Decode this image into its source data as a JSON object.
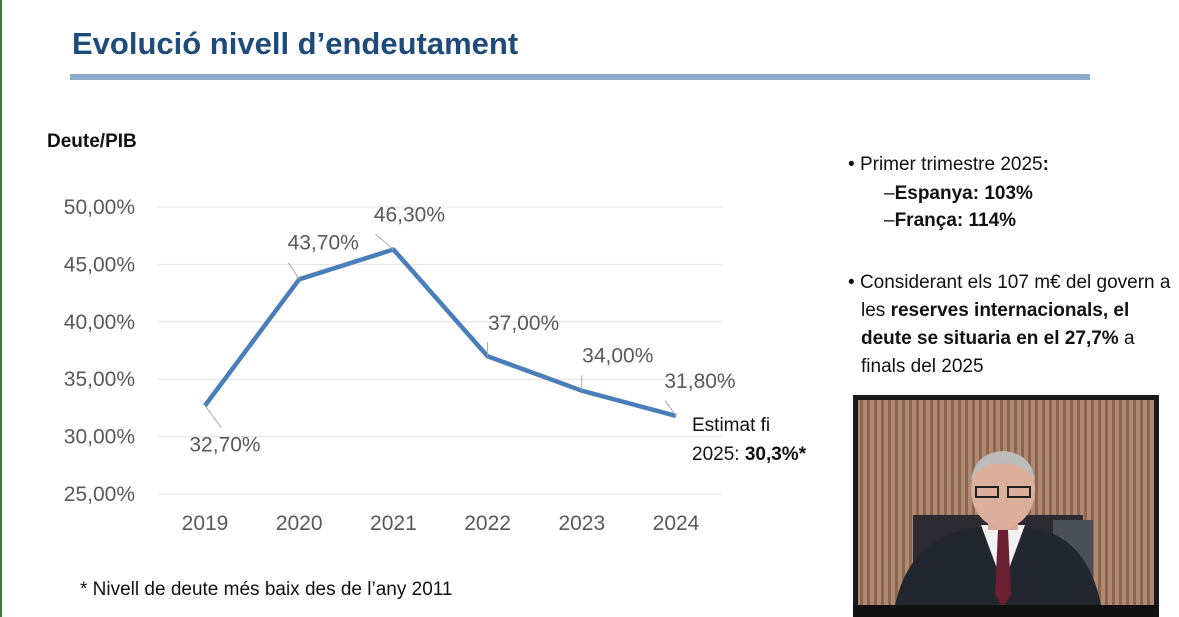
{
  "title": "Evolució nivell d’endeutament",
  "chart_data": {
    "type": "line",
    "y_label": "Deute/PIB",
    "categories": [
      "2019",
      "2020",
      "2021",
      "2022",
      "2023",
      "2024"
    ],
    "series": [
      {
        "color": "#4a7ebb",
        "values": [
          32.7,
          43.7,
          46.3,
          37.0,
          34.0,
          31.8
        ],
        "value_labels": [
          "32,70%",
          "43,70%",
          "46,30%",
          "37,00%",
          "34,00%",
          "31,80%"
        ]
      }
    ],
    "ylim": [
      25,
      50
    ],
    "yticks": [
      {
        "value": 25,
        "label": "25,00%"
      },
      {
        "value": 30,
        "label": "30,00%"
      },
      {
        "value": 35,
        "label": "35,00%"
      },
      {
        "value": 40,
        "label": "40,00%"
      },
      {
        "value": 45,
        "label": "45,00%"
      },
      {
        "value": 50,
        "label": "50,00%"
      }
    ],
    "grid": true,
    "annotation": {
      "line1": "Estimat fi",
      "line2": "2025: ",
      "bold": "30,3%*"
    }
  },
  "footnote": "* Nivell de deute més baix des de l’any 2011",
  "bullets": {
    "first": {
      "lead": "Primer trimestre 2025",
      "colon": ":",
      "items": [
        {
          "marker": "–",
          "text": "Espanya: 103%"
        },
        {
          "marker": "–",
          "text": "França: 114%"
        }
      ]
    },
    "second": {
      "before": "Considerant els 107 m€ del govern a les ",
      "bold": "reserves internacionals, el deute se situaria en el 27,7%",
      "after": " a finals del 2025"
    }
  }
}
